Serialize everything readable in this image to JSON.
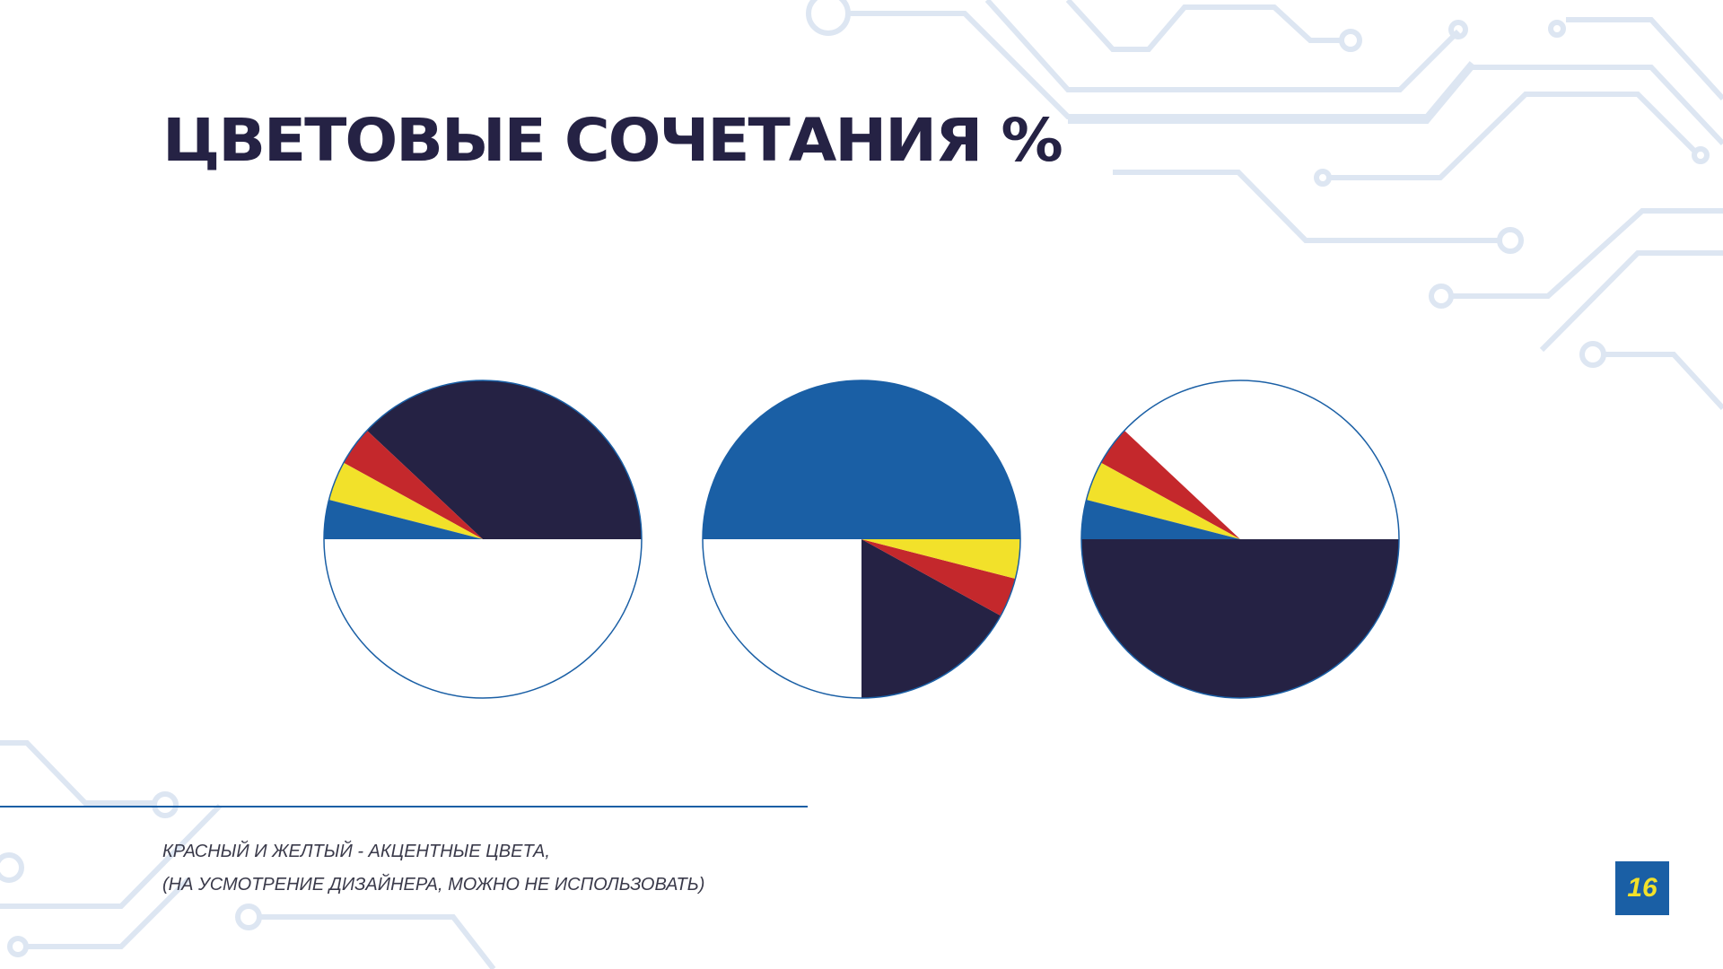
{
  "title": "ЦВЕТОВЫЕ СОЧЕТАНИЯ %",
  "notes": [
    "КРАСНЫЙ И ЖЕЛТЫЙ - АКЦЕНТНЫЕ ЦВЕТА,",
    "(НА УСМОТРЕНИЕ ДИЗАЙНЕРА, МОЖНО НЕ ИСПОЛЬЗОВАТЬ)"
  ],
  "page_number": "16",
  "colors": {
    "dark": "#252244",
    "blue": "#1a5fa5",
    "red": "#c4282c",
    "yellow": "#f2e12a",
    "white": "#ffffff",
    "accent": "#1a5fa5"
  },
  "chart_data": [
    {
      "type": "pie",
      "start": "right, counter-clockwise",
      "slices": [
        {
          "color": "dark",
          "value": 38
        },
        {
          "color": "red",
          "value": 4
        },
        {
          "color": "yellow",
          "value": 4
        },
        {
          "color": "blue",
          "value": 4
        },
        {
          "color": "white",
          "value": 50
        }
      ]
    },
    {
      "type": "pie",
      "start": "right, counter-clockwise",
      "slices": [
        {
          "color": "blue",
          "value": 50
        },
        {
          "color": "white",
          "value": 25
        },
        {
          "color": "dark",
          "value": 17
        },
        {
          "color": "red",
          "value": 4
        },
        {
          "color": "yellow",
          "value": 4
        }
      ]
    },
    {
      "type": "pie",
      "start": "right, counter-clockwise",
      "slices": [
        {
          "color": "white",
          "value": 38
        },
        {
          "color": "red",
          "value": 4
        },
        {
          "color": "yellow",
          "value": 4
        },
        {
          "color": "blue",
          "value": 4
        },
        {
          "color": "dark",
          "value": 50
        }
      ]
    }
  ]
}
